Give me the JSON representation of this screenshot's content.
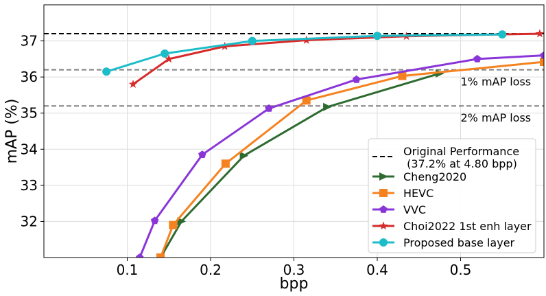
{
  "chart_data": {
    "type": "line",
    "xlabel": "bpp",
    "ylabel": "mAP (%)",
    "xlim": [
      0.0,
      0.6
    ],
    "ylim": [
      31.0,
      38.0
    ],
    "xticks": [
      0.1,
      0.2,
      0.3,
      0.4,
      0.5
    ],
    "xtick_labels": [
      "0.1",
      "0.2",
      "0.3",
      "0.4",
      "0.5"
    ],
    "yticks": [
      32,
      33,
      34,
      35,
      36,
      37
    ],
    "ytick_labels": [
      "32",
      "33",
      "34",
      "35",
      "36",
      "37"
    ],
    "grid": true,
    "legend_position": "lower-right",
    "reference_lines": [
      {
        "y": 37.2,
        "style": "dashed",
        "color": "#000000",
        "legend": "Original Performance",
        "legend_sub": " (37.2% at 4.80 bpp)"
      },
      {
        "y": 36.2,
        "style": "dashed",
        "color": "#808080",
        "annotation": "1% mAP loss"
      },
      {
        "y": 35.2,
        "style": "dashed",
        "color": "#808080",
        "annotation": "2% mAP loss"
      }
    ],
    "series": [
      {
        "name": "Cheng2020",
        "color": "#2e6b30",
        "marker": "triangle-right",
        "x": [
          0.14,
          0.165,
          0.24,
          0.34,
          0.475
        ],
        "y": [
          31.0,
          32.0,
          33.82,
          35.17,
          36.1
        ]
      },
      {
        "name": "HEVC",
        "color": "#f5821f",
        "marker": "square",
        "x": [
          0.14,
          0.155,
          0.218,
          0.315,
          0.43,
          0.6
        ],
        "y": [
          31.0,
          31.9,
          33.6,
          35.35,
          36.03,
          36.42
        ]
      },
      {
        "name": "VVC",
        "color": "#8a35d8",
        "marker": "pentagon",
        "x": [
          0.115,
          0.133,
          0.19,
          0.27,
          0.375,
          0.52,
          0.6
        ],
        "y": [
          31.0,
          32.02,
          33.85,
          35.13,
          35.93,
          36.5,
          36.6
        ]
      },
      {
        "name": "Choi2022 1st enh layer",
        "color": "#d62b2b",
        "marker": "star",
        "x": [
          0.107,
          0.15,
          0.217,
          0.315,
          0.435,
          0.595
        ],
        "y": [
          35.8,
          36.5,
          36.85,
          37.02,
          37.13,
          37.2
        ]
      },
      {
        "name": "Proposed base layer",
        "color": "#1cbcc8",
        "marker": "circle",
        "x": [
          0.075,
          0.145,
          0.25,
          0.4,
          0.55
        ],
        "y": [
          36.15,
          36.65,
          37.0,
          37.14,
          37.18
        ]
      }
    ]
  }
}
